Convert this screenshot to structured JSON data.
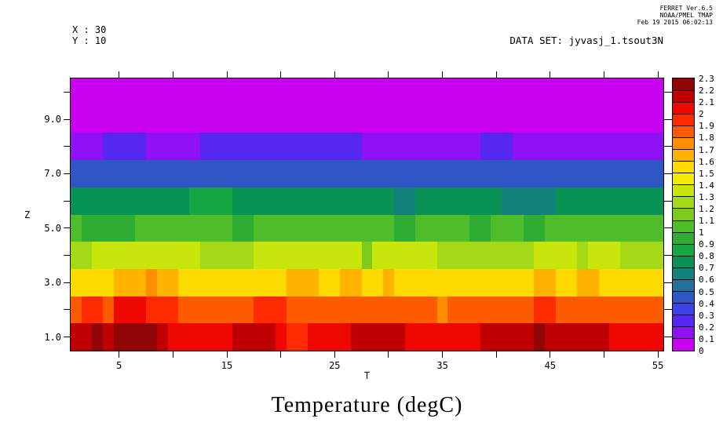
{
  "header": {
    "ferret_line1": "FERRET Ver.6.5",
    "ferret_line2": "NOAA/PMEL TMAP",
    "ferret_line3": "Feb 19 2015 06:02:13",
    "coord_x": "X : 30",
    "coord_y": "Y : 10",
    "dataset": "DATA SET: jyvasj_1.tsout3N"
  },
  "chart_data": {
    "type": "heatmap",
    "title": "Temperature (degC)",
    "xlabel": "T",
    "ylabel": "Z",
    "x_range": [
      0.5,
      55.5
    ],
    "y_range": [
      0.5,
      10.5
    ],
    "grid": false,
    "legend_position": "right-colorbar",
    "x_ticks": [
      5,
      10,
      15,
      20,
      25,
      30,
      35,
      40,
      45,
      50,
      55
    ],
    "labeled_x_ticks": [
      [
        5,
        "5"
      ],
      [
        15,
        "15"
      ],
      [
        25,
        "25"
      ],
      [
        35,
        "35"
      ],
      [
        45,
        "45"
      ],
      [
        55,
        "55"
      ]
    ],
    "y_ticks": [
      1,
      2,
      3,
      4,
      5,
      6,
      7,
      8,
      9,
      10
    ],
    "labeled_y_ticks": [
      [
        1,
        "1.0"
      ],
      [
        3,
        "3.0"
      ],
      [
        5,
        "5.0"
      ],
      [
        7,
        "7.0"
      ],
      [
        9,
        "9.0"
      ]
    ],
    "colorbar": {
      "min": 0,
      "max": 2.3,
      "step": 0.1,
      "labels": [
        "0",
        "0.1",
        "0.2",
        "0.3",
        "0.4",
        "0.5",
        "0.6",
        "0.7",
        "0.8",
        "0.9",
        "1",
        "1.1",
        "1.2",
        "1.3",
        "1.4",
        "1.5",
        "1.6",
        "1.7",
        "1.8",
        "1.9",
        "2",
        "2.1",
        "2.2",
        "2.3"
      ],
      "bins": [
        {
          "v": 0.05,
          "color": "#C800F0"
        },
        {
          "v": 0.15,
          "color": "#8E12F4"
        },
        {
          "v": 0.25,
          "color": "#5627F0"
        },
        {
          "v": 0.35,
          "color": "#3C41E8"
        },
        {
          "v": 0.45,
          "color": "#3056C4"
        },
        {
          "v": 0.55,
          "color": "#256F9C"
        },
        {
          "v": 0.65,
          "color": "#12827A"
        },
        {
          "v": 0.75,
          "color": "#089355"
        },
        {
          "v": 0.85,
          "color": "#14A744"
        },
        {
          "v": 0.95,
          "color": "#2EAC33"
        },
        {
          "v": 1.05,
          "color": "#4FBC2A"
        },
        {
          "v": 1.15,
          "color": "#7CCB1C"
        },
        {
          "v": 1.25,
          "color": "#A5D917"
        },
        {
          "v": 1.35,
          "color": "#C8E60C"
        },
        {
          "v": 1.45,
          "color": "#F2ED00"
        },
        {
          "v": 1.55,
          "color": "#FFDA00"
        },
        {
          "v": 1.65,
          "color": "#FFB300"
        },
        {
          "v": 1.75,
          "color": "#FF8F00"
        },
        {
          "v": 1.85,
          "color": "#FF5B00"
        },
        {
          "v": 1.95,
          "color": "#FF2B00"
        },
        {
          "v": 2.05,
          "color": "#EE0800"
        },
        {
          "v": 2.15,
          "color": "#C00000"
        },
        {
          "v": 2.25,
          "color": "#900505"
        }
      ]
    },
    "rows": [
      {
        "z": 10,
        "segments": [
          [
            0.5,
            55.5,
            0.05
          ]
        ]
      },
      {
        "z": 9,
        "segments": [
          [
            0.5,
            55.5,
            0.05
          ]
        ]
      },
      {
        "z": 8,
        "segments": [
          [
            0.5,
            3.5,
            0.15
          ],
          [
            3.5,
            7.5,
            0.25
          ],
          [
            7.5,
            12.5,
            0.15
          ],
          [
            12.5,
            27.5,
            0.25
          ],
          [
            27.5,
            38.5,
            0.15
          ],
          [
            38.5,
            41.5,
            0.25
          ],
          [
            41.5,
            55.5,
            0.15
          ]
        ]
      },
      {
        "z": 7,
        "segments": [
          [
            0.5,
            55.5,
            0.45
          ]
        ]
      },
      {
        "z": 6,
        "segments": [
          [
            0.5,
            11.5,
            0.75
          ],
          [
            11.5,
            15.5,
            0.85
          ],
          [
            15.5,
            30.5,
            0.75
          ],
          [
            30.5,
            32.5,
            0.65
          ],
          [
            32.5,
            40.5,
            0.75
          ],
          [
            40.5,
            45.5,
            0.65
          ],
          [
            45.5,
            55.5,
            0.75
          ]
        ]
      },
      {
        "z": 5,
        "segments": [
          [
            0.5,
            1.5,
            1.05
          ],
          [
            1.5,
            6.5,
            0.95
          ],
          [
            6.5,
            15.5,
            1.05
          ],
          [
            15.5,
            17.5,
            0.95
          ],
          [
            17.5,
            30.5,
            1.05
          ],
          [
            30.5,
            32.5,
            0.95
          ],
          [
            32.5,
            37.5,
            1.05
          ],
          [
            37.5,
            39.5,
            0.95
          ],
          [
            39.5,
            42.5,
            1.05
          ],
          [
            42.5,
            44.5,
            0.95
          ],
          [
            44.5,
            55.5,
            1.05
          ]
        ]
      },
      {
        "z": 4,
        "segments": [
          [
            0.5,
            2.5,
            1.25
          ],
          [
            2.5,
            12.5,
            1.35
          ],
          [
            12.5,
            17.5,
            1.25
          ],
          [
            17.5,
            27.5,
            1.35
          ],
          [
            27.5,
            28.5,
            1.15
          ],
          [
            28.5,
            34.5,
            1.35
          ],
          [
            34.5,
            43.5,
            1.25
          ],
          [
            43.5,
            47.5,
            1.35
          ],
          [
            47.5,
            48.5,
            1.25
          ],
          [
            48.5,
            51.5,
            1.35
          ],
          [
            51.5,
            55.5,
            1.25
          ]
        ]
      },
      {
        "z": 3,
        "segments": [
          [
            0.5,
            4.5,
            1.55
          ],
          [
            4.5,
            7.5,
            1.65
          ],
          [
            7.5,
            8.5,
            1.75
          ],
          [
            8.5,
            10.5,
            1.65
          ],
          [
            10.5,
            20.5,
            1.55
          ],
          [
            20.5,
            23.5,
            1.65
          ],
          [
            23.5,
            25.5,
            1.55
          ],
          [
            25.5,
            27.5,
            1.65
          ],
          [
            27.5,
            29.5,
            1.55
          ],
          [
            29.5,
            30.5,
            1.65
          ],
          [
            30.5,
            43.5,
            1.55
          ],
          [
            43.5,
            45.5,
            1.65
          ],
          [
            45.5,
            47.5,
            1.55
          ],
          [
            47.5,
            49.5,
            1.65
          ],
          [
            49.5,
            55.5,
            1.55
          ]
        ]
      },
      {
        "z": 2,
        "segments": [
          [
            0.5,
            1.5,
            1.85
          ],
          [
            1.5,
            3.5,
            1.95
          ],
          [
            3.5,
            4.5,
            1.85
          ],
          [
            4.5,
            7.5,
            2.05
          ],
          [
            7.5,
            10.5,
            1.95
          ],
          [
            10.5,
            17.5,
            1.85
          ],
          [
            17.5,
            20.5,
            1.95
          ],
          [
            20.5,
            34.5,
            1.85
          ],
          [
            34.5,
            35.5,
            1.75
          ],
          [
            35.5,
            43.5,
            1.85
          ],
          [
            43.5,
            45.5,
            1.95
          ],
          [
            45.5,
            55.5,
            1.85
          ]
        ]
      },
      {
        "z": 1,
        "segments": [
          [
            0.5,
            2.5,
            2.15
          ],
          [
            2.5,
            3.5,
            2.25
          ],
          [
            3.5,
            4.5,
            2.15
          ],
          [
            4.5,
            8.5,
            2.25
          ],
          [
            8.5,
            9.5,
            2.15
          ],
          [
            9.5,
            15.5,
            2.05
          ],
          [
            15.5,
            19.5,
            2.15
          ],
          [
            19.5,
            20.5,
            2.05
          ],
          [
            20.5,
            22.5,
            1.95
          ],
          [
            22.5,
            26.5,
            2.05
          ],
          [
            26.5,
            31.5,
            2.15
          ],
          [
            31.5,
            38.5,
            2.05
          ],
          [
            38.5,
            43.5,
            2.15
          ],
          [
            43.5,
            44.5,
            2.25
          ],
          [
            44.5,
            50.5,
            2.15
          ],
          [
            50.5,
            55.5,
            2.05
          ]
        ]
      }
    ]
  }
}
